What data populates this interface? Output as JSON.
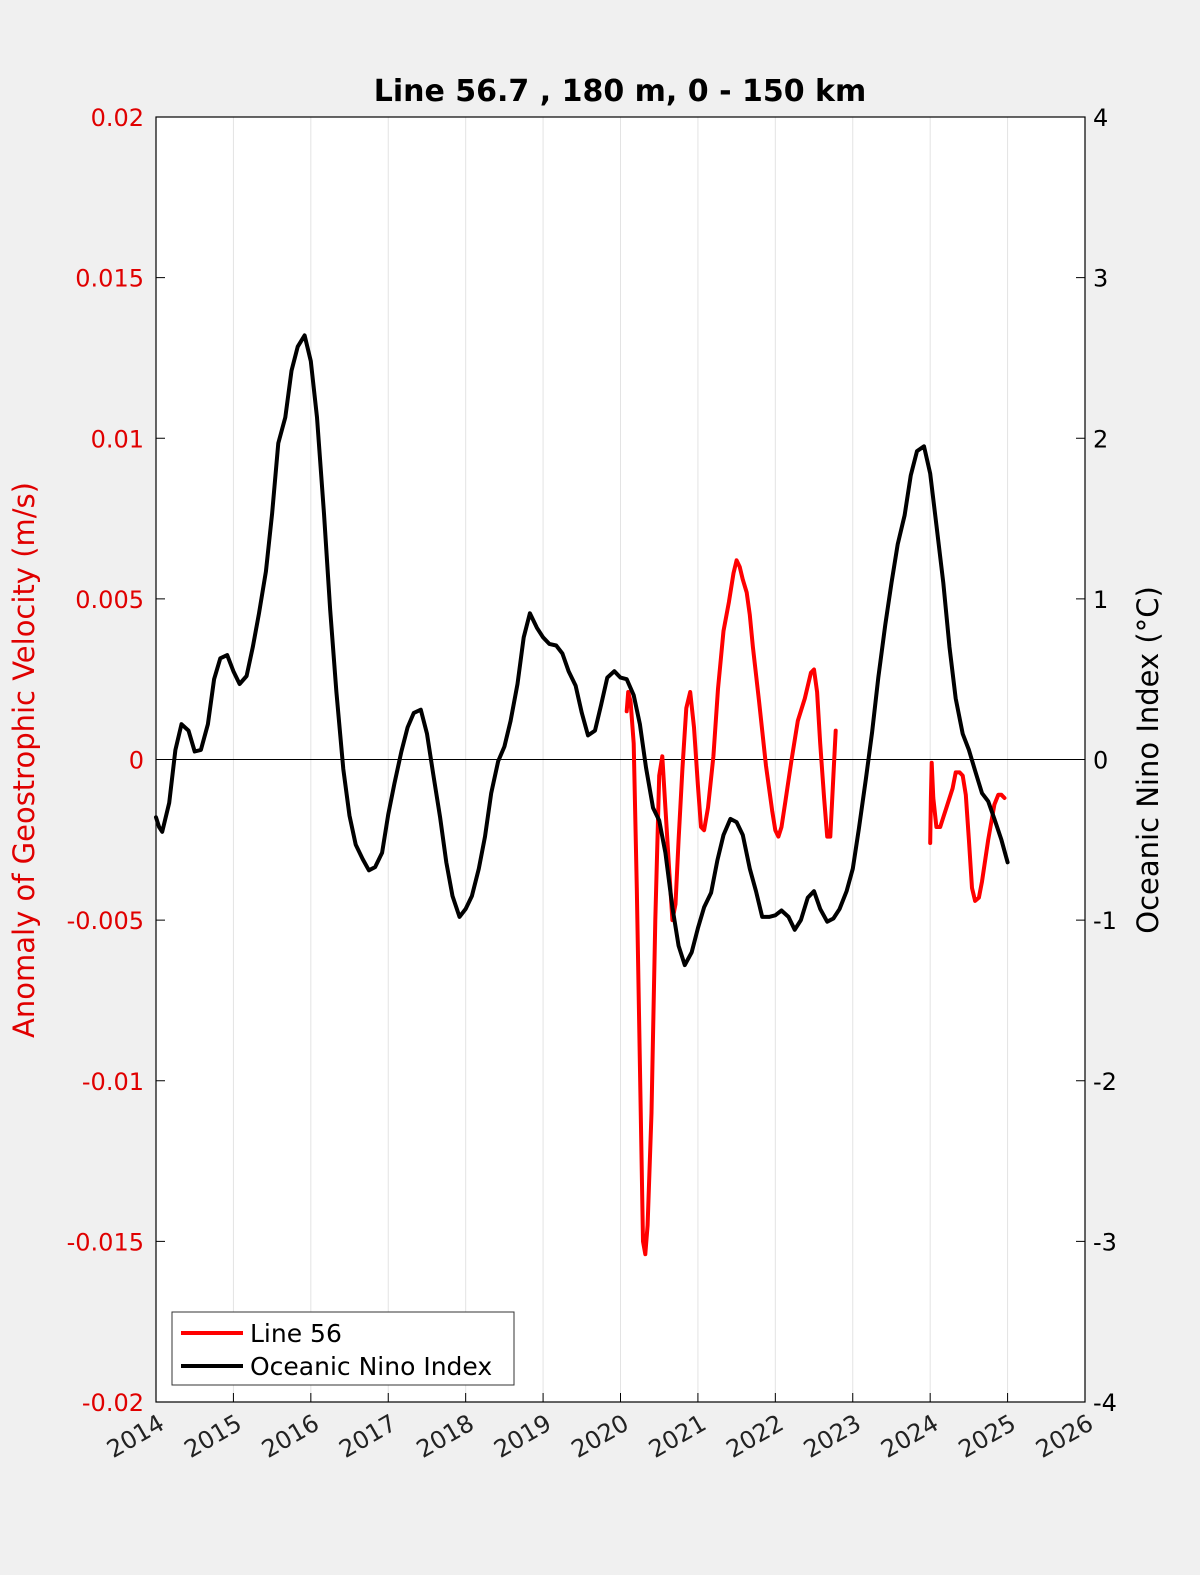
{
  "chart_data": {
    "type": "line",
    "title": "Line 56.7 , 180 m, 0 - 150 km",
    "xlabel": "",
    "ylabel_left": "Anomaly of Geostrophic Velocity (m/s)",
    "ylabel_right": "Oceanic Nino Index (°C)",
    "xlim": [
      2014,
      2026
    ],
    "ylim_left": [
      -0.02,
      0.02
    ],
    "ylim_right": [
      -4,
      4
    ],
    "x_ticks": [
      "2014",
      "2015",
      "2016",
      "2017",
      "2018",
      "2019",
      "2020",
      "2021",
      "2022",
      "2023",
      "2024",
      "2025",
      "2026"
    ],
    "y_left_ticks": [
      "-0.02",
      "-0.015",
      "-0.01",
      "-0.005",
      "0",
      "0.005",
      "0.01",
      "0.015",
      "0.02"
    ],
    "y_right_ticks": [
      "-4",
      "-3",
      "-2",
      "-1",
      "0",
      "1",
      "2",
      "3",
      "4"
    ],
    "grid": "vertical",
    "zero_line": true,
    "legend_position": "bottom-left",
    "series": [
      {
        "name": "Line 56",
        "color": "#ff0000",
        "axis": "left",
        "segments": [
          [
            [
              2020.08,
              0.0015
            ],
            [
              2020.1,
              0.0021
            ],
            [
              2020.13,
              0.0018
            ],
            [
              2020.17,
              0.0005
            ],
            [
              2020.21,
              -0.004
            ],
            [
              2020.25,
              -0.0095
            ],
            [
              2020.29,
              -0.015
            ],
            [
              2020.32,
              -0.0154
            ],
            [
              2020.35,
              -0.0145
            ],
            [
              2020.4,
              -0.011
            ],
            [
              2020.45,
              -0.005
            ],
            [
              2020.5,
              -0.0005
            ],
            [
              2020.54,
              0.0001
            ],
            [
              2020.58,
              -0.0015
            ],
            [
              2020.63,
              -0.0035
            ],
            [
              2020.67,
              -0.005
            ],
            [
              2020.71,
              -0.0045
            ],
            [
              2020.75,
              -0.0025
            ],
            [
              2020.8,
              -0.0003
            ],
            [
              2020.85,
              0.0016
            ],
            [
              2020.9,
              0.0021
            ],
            [
              2020.95,
              0.001
            ],
            [
              2021.0,
              -0.0008
            ],
            [
              2021.04,
              -0.0021
            ],
            [
              2021.08,
              -0.0022
            ],
            [
              2021.13,
              -0.0015
            ],
            [
              2021.2,
              0.0001
            ],
            [
              2021.26,
              0.0022
            ],
            [
              2021.33,
              0.004
            ],
            [
              2021.4,
              0.0049
            ],
            [
              2021.46,
              0.0058
            ],
            [
              2021.5,
              0.0062
            ],
            [
              2021.54,
              0.006
            ],
            [
              2021.58,
              0.0056
            ],
            [
              2021.63,
              0.0052
            ],
            [
              2021.67,
              0.0045
            ],
            [
              2021.71,
              0.0035
            ],
            [
              2021.79,
              0.0018
            ],
            [
              2021.88,
              -0.0002
            ],
            [
              2021.96,
              -0.0016
            ],
            [
              2022.0,
              -0.0022
            ],
            [
              2022.04,
              -0.0024
            ],
            [
              2022.08,
              -0.0021
            ],
            [
              2022.13,
              -0.0013
            ],
            [
              2022.21,
              0.0
            ],
            [
              2022.29,
              0.0012
            ],
            [
              2022.38,
              0.0019
            ],
            [
              2022.46,
              0.0027
            ],
            [
              2022.5,
              0.0028
            ],
            [
              2022.54,
              0.0021
            ],
            [
              2022.58,
              0.0005
            ],
            [
              2022.63,
              -0.0012
            ],
            [
              2022.67,
              -0.0024
            ],
            [
              2022.71,
              -0.0024
            ],
            [
              2022.75,
              -0.0005
            ],
            [
              2022.78,
              0.0009
            ]
          ],
          [
            [
              2024.0,
              -0.0026
            ],
            [
              2024.01,
              -0.0012
            ],
            [
              2024.02,
              -0.0001
            ],
            [
              2024.04,
              -0.0012
            ],
            [
              2024.08,
              -0.0021
            ],
            [
              2024.13,
              -0.0021
            ],
            [
              2024.17,
              -0.0018
            ],
            [
              2024.21,
              -0.0015
            ],
            [
              2024.29,
              -0.0009
            ],
            [
              2024.33,
              -0.0004
            ],
            [
              2024.38,
              -0.0004
            ],
            [
              2024.42,
              -0.0005
            ],
            [
              2024.46,
              -0.0011
            ],
            [
              2024.5,
              -0.0025
            ],
            [
              2024.54,
              -0.004
            ],
            [
              2024.58,
              -0.0044
            ],
            [
              2024.63,
              -0.0043
            ],
            [
              2024.67,
              -0.0038
            ],
            [
              2024.75,
              -0.0025
            ],
            [
              2024.83,
              -0.0014
            ],
            [
              2024.88,
              -0.0011
            ],
            [
              2024.92,
              -0.0011
            ],
            [
              2024.96,
              -0.0012
            ]
          ]
        ]
      },
      {
        "name": "Oceanic Nino Index",
        "color": "#000000",
        "axis": "right",
        "segments": [
          [
            [
              2014.0,
              -0.36
            ],
            [
              2014.04,
              -0.42
            ],
            [
              2014.08,
              -0.45
            ],
            [
              2014.17,
              -0.27
            ],
            [
              2014.25,
              0.06
            ],
            [
              2014.33,
              0.22
            ],
            [
              2014.42,
              0.18
            ],
            [
              2014.5,
              0.05
            ],
            [
              2014.58,
              0.06
            ],
            [
              2014.67,
              0.22
            ],
            [
              2014.75,
              0.5
            ],
            [
              2014.83,
              0.63
            ],
            [
              2014.92,
              0.65
            ],
            [
              2015.0,
              0.55
            ],
            [
              2015.08,
              0.47
            ],
            [
              2015.17,
              0.52
            ],
            [
              2015.25,
              0.7
            ],
            [
              2015.33,
              0.91
            ],
            [
              2015.42,
              1.17
            ],
            [
              2015.5,
              1.53
            ],
            [
              2015.58,
              1.97
            ],
            [
              2015.67,
              2.13
            ],
            [
              2015.75,
              2.42
            ],
            [
              2015.83,
              2.57
            ],
            [
              2015.92,
              2.64
            ],
            [
              2016.0,
              2.48
            ],
            [
              2016.08,
              2.13
            ],
            [
              2016.17,
              1.53
            ],
            [
              2016.25,
              0.93
            ],
            [
              2016.33,
              0.42
            ],
            [
              2016.42,
              -0.06
            ],
            [
              2016.5,
              -0.35
            ],
            [
              2016.58,
              -0.53
            ],
            [
              2016.67,
              -0.62
            ],
            [
              2016.75,
              -0.69
            ],
            [
              2016.83,
              -0.67
            ],
            [
              2016.92,
              -0.58
            ],
            [
              2017.0,
              -0.34
            ],
            [
              2017.08,
              -0.15
            ],
            [
              2017.17,
              0.05
            ],
            [
              2017.25,
              0.2
            ],
            [
              2017.33,
              0.29
            ],
            [
              2017.42,
              0.31
            ],
            [
              2017.5,
              0.16
            ],
            [
              2017.58,
              -0.09
            ],
            [
              2017.67,
              -0.36
            ],
            [
              2017.75,
              -0.64
            ],
            [
              2017.83,
              -0.85
            ],
            [
              2017.92,
              -0.98
            ],
            [
              2018.0,
              -0.93
            ],
            [
              2018.08,
              -0.85
            ],
            [
              2018.17,
              -0.68
            ],
            [
              2018.25,
              -0.48
            ],
            [
              2018.33,
              -0.21
            ],
            [
              2018.42,
              -0.01
            ],
            [
              2018.5,
              0.08
            ],
            [
              2018.58,
              0.24
            ],
            [
              2018.67,
              0.47
            ],
            [
              2018.75,
              0.76
            ],
            [
              2018.83,
              0.91
            ],
            [
              2018.92,
              0.82
            ],
            [
              2019.0,
              0.76
            ],
            [
              2019.08,
              0.72
            ],
            [
              2019.17,
              0.71
            ],
            [
              2019.25,
              0.66
            ],
            [
              2019.33,
              0.55
            ],
            [
              2019.42,
              0.46
            ],
            [
              2019.5,
              0.29
            ],
            [
              2019.58,
              0.15
            ],
            [
              2019.67,
              0.18
            ],
            [
              2019.75,
              0.34
            ],
            [
              2019.83,
              0.51
            ],
            [
              2019.92,
              0.55
            ],
            [
              2020.0,
              0.51
            ],
            [
              2020.08,
              0.5
            ],
            [
              2020.17,
              0.4
            ],
            [
              2020.25,
              0.22
            ],
            [
              2020.33,
              -0.05
            ],
            [
              2020.42,
              -0.3
            ],
            [
              2020.5,
              -0.38
            ],
            [
              2020.58,
              -0.58
            ],
            [
              2020.67,
              -0.92
            ],
            [
              2020.75,
              -1.16
            ],
            [
              2020.83,
              -1.28
            ],
            [
              2020.92,
              -1.2
            ],
            [
              2021.0,
              -1.05
            ],
            [
              2021.08,
              -0.92
            ],
            [
              2021.17,
              -0.83
            ],
            [
              2021.25,
              -0.63
            ],
            [
              2021.33,
              -0.47
            ],
            [
              2021.42,
              -0.37
            ],
            [
              2021.5,
              -0.39
            ],
            [
              2021.58,
              -0.47
            ],
            [
              2021.67,
              -0.68
            ],
            [
              2021.75,
              -0.82
            ],
            [
              2021.83,
              -0.98
            ],
            [
              2021.92,
              -0.98
            ],
            [
              2022.0,
              -0.97
            ],
            [
              2022.08,
              -0.94
            ],
            [
              2022.17,
              -0.98
            ],
            [
              2022.25,
              -1.06
            ],
            [
              2022.33,
              -1.0
            ],
            [
              2022.42,
              -0.86
            ],
            [
              2022.5,
              -0.82
            ],
            [
              2022.58,
              -0.93
            ],
            [
              2022.67,
              -1.01
            ],
            [
              2022.75,
              -0.99
            ],
            [
              2022.83,
              -0.93
            ],
            [
              2022.92,
              -0.82
            ],
            [
              2023.0,
              -0.68
            ],
            [
              2023.08,
              -0.43
            ],
            [
              2023.17,
              -0.12
            ],
            [
              2023.25,
              0.17
            ],
            [
              2023.33,
              0.51
            ],
            [
              2023.42,
              0.84
            ],
            [
              2023.5,
              1.1
            ],
            [
              2023.58,
              1.34
            ],
            [
              2023.67,
              1.52
            ],
            [
              2023.75,
              1.77
            ],
            [
              2023.83,
              1.92
            ],
            [
              2023.92,
              1.95
            ],
            [
              2024.0,
              1.78
            ],
            [
              2024.08,
              1.46
            ],
            [
              2024.17,
              1.1
            ],
            [
              2024.25,
              0.7
            ],
            [
              2024.33,
              0.38
            ],
            [
              2024.42,
              0.16
            ],
            [
              2024.5,
              0.06
            ],
            [
              2024.58,
              -0.07
            ],
            [
              2024.67,
              -0.21
            ],
            [
              2024.75,
              -0.26
            ],
            [
              2024.83,
              -0.37
            ],
            [
              2024.92,
              -0.5
            ],
            [
              2025.0,
              -0.64
            ]
          ]
        ]
      }
    ]
  }
}
